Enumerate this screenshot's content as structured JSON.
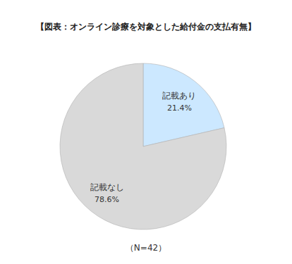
{
  "chart_data": {
    "type": "pie",
    "title": "【図表：オンライン診療を対象とした給付金の支払有無】",
    "categories": [
      "記載あり",
      "記載なし"
    ],
    "values": [
      21.4,
      78.6
    ],
    "value_labels": [
      "21.4%",
      "78.6%"
    ],
    "colors": [
      "#cce8ff",
      "#d9d9d9"
    ],
    "data_labels": true,
    "annotation": "（N=42）"
  }
}
